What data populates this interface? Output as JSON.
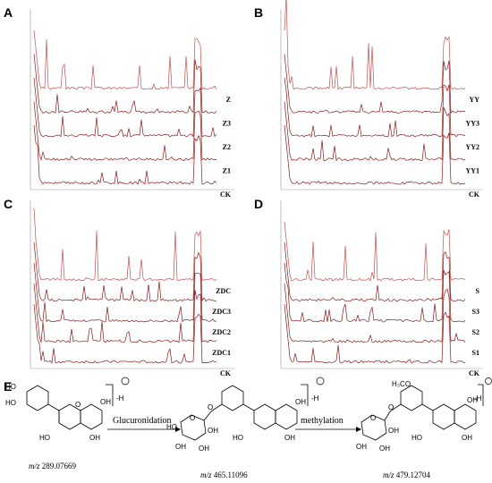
{
  "panels": [
    {
      "letter": "A",
      "traces": [
        "Z",
        "Z3",
        "Z2",
        "Z1",
        "CK"
      ]
    },
    {
      "letter": "B",
      "traces": [
        "YY",
        "YY3",
        "YY2",
        "YY1",
        "CK"
      ]
    },
    {
      "letter": "C",
      "traces": [
        "ZDC",
        "ZDC3",
        "ZDC2",
        "ZDC1",
        "CK"
      ]
    },
    {
      "letter": "D",
      "traces": [
        "S",
        "S3",
        "S2",
        "S1",
        "CK"
      ]
    }
  ],
  "chart_data": [
    {
      "type": "line",
      "panel": "A",
      "series": [
        {
          "name": "Z"
        },
        {
          "name": "Z3"
        },
        {
          "name": "Z2"
        },
        {
          "name": "Z1"
        },
        {
          "name": "CK"
        }
      ]
    },
    {
      "type": "line",
      "panel": "B",
      "series": [
        {
          "name": "YY"
        },
        {
          "name": "YY3"
        },
        {
          "name": "YY2"
        },
        {
          "name": "YY1"
        },
        {
          "name": "CK"
        }
      ]
    },
    {
      "type": "line",
      "panel": "C",
      "series": [
        {
          "name": "ZDC"
        },
        {
          "name": "ZDC3"
        },
        {
          "name": "ZDC2"
        },
        {
          "name": "ZDC1"
        },
        {
          "name": "CK"
        }
      ]
    },
    {
      "type": "line",
      "panel": "D",
      "series": [
        {
          "name": "S"
        },
        {
          "name": "S3"
        },
        {
          "name": "S2"
        },
        {
          "name": "S1"
        },
        {
          "name": "CK"
        }
      ]
    }
  ],
  "scheme": {
    "letter": "E",
    "step1": "Glucuronidation",
    "step2": "methylation",
    "mz_label": "m/z",
    "mz1": "289.07669",
    "mz2": "465.11096",
    "mz3": "479.12704",
    "minus_h": "-H",
    "h3co": "H₃CO",
    "ho": "HO",
    "oh": "OH",
    "o": "O"
  },
  "colors": {
    "trace": "#8b1a1a",
    "trace_light": "#c55050",
    "axis": "#999999"
  }
}
